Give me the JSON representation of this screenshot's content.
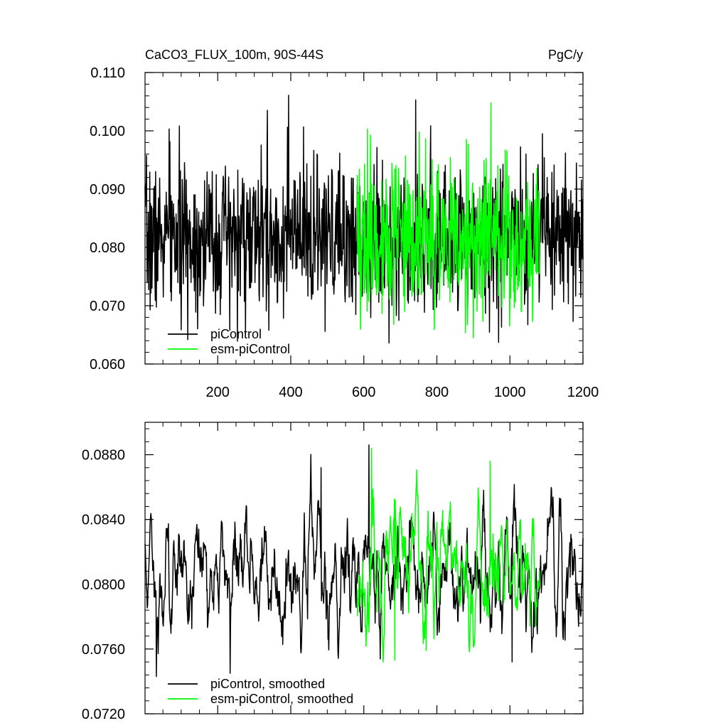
{
  "chart_data": [
    {
      "type": "line",
      "title": "CaCO3_FLUX_100m, 90S-44S",
      "units": "PgC/y",
      "xlabel": "",
      "ylabel": "",
      "xlim": [
        1,
        1200
      ],
      "ylim": [
        0.06,
        0.11
      ],
      "x_ticks": [
        200,
        400,
        600,
        800,
        1000,
        1200
      ],
      "x_tick_labels": [
        "200",
        "400",
        "600",
        "800",
        "1000",
        "1200"
      ],
      "y_ticks": [
        0.06,
        0.07,
        0.08,
        0.09,
        0.1,
        0.11
      ],
      "y_tick_labels": [
        "0.060",
        "0.070",
        "0.080",
        "0.090",
        "0.100",
        "0.110"
      ],
      "grid": false,
      "legend_position": "bottom-left",
      "series": [
        {
          "name": "piControl",
          "color": "#000000",
          "x_range": [
            1,
            1200
          ],
          "mean": 0.0815,
          "std": 0.0062,
          "smoothing": 0,
          "clip": [
            0.0636,
            0.1062
          ],
          "seed": 7,
          "peaks": [
            [
              67,
              0.1003
            ],
            [
              233,
              0.0658
            ],
            [
              336,
              0.1035
            ],
            [
              340,
              0.0658
            ],
            [
              394,
              0.1061
            ],
            [
              494,
              0.0656
            ],
            [
              742,
              0.1053
            ],
            [
              969,
              0.0637
            ],
            [
              1089,
              0.0995
            ]
          ]
        },
        {
          "name": "esm-piControl",
          "color": "#00ff00",
          "x_range": [
            582,
            1081
          ],
          "mean": 0.0815,
          "std": 0.0065,
          "smoothing": 0,
          "clip": [
            0.0645,
            0.1048
          ],
          "seed": 19,
          "peaks": [
            [
              610,
              0.1003
            ],
            [
              682,
              0.0668
            ],
            [
              752,
              0.0998
            ],
            [
              793,
              0.0659
            ],
            [
              900,
              0.0645
            ],
            [
              948,
              0.1048
            ]
          ]
        }
      ]
    },
    {
      "type": "line",
      "title": "",
      "xlabel": "",
      "ylabel": "",
      "xlim": [
        1,
        1200
      ],
      "ylim": [
        0.072,
        0.09
      ],
      "x_ticks": [
        200,
        400,
        600,
        800,
        1000,
        1200
      ],
      "y_ticks": [
        0.072,
        0.076,
        0.08,
        0.084,
        0.088
      ],
      "y_tick_labels": [
        "0.0720",
        "0.0760",
        "0.0800",
        "0.0840",
        "0.0880"
      ],
      "grid": false,
      "legend_position": "bottom-left",
      "series": [
        {
          "name": "piControl, smoothed",
          "color": "#000000",
          "x_range": [
            1,
            1200
          ],
          "mean": 0.0806,
          "std": 0.0019,
          "smoothing": 4,
          "clip": [
            0.0742,
            0.0886
          ],
          "seed": 11,
          "peaks": [
            [
              32,
              0.0743
            ],
            [
              234,
              0.0745
            ],
            [
              483,
              0.0872
            ],
            [
              614,
              0.0886
            ],
            [
              1006,
              0.0752
            ],
            [
              1188,
              0.0774
            ]
          ]
        },
        {
          "name": "esm-piControl, smoothed",
          "color": "#00ff00",
          "x_range": [
            582,
            1081
          ],
          "mean": 0.081,
          "std": 0.0021,
          "smoothing": 4,
          "clip": [
            0.0752,
            0.0884
          ],
          "seed": 23,
          "peaks": [
            [
              621,
              0.0884
            ],
            [
              685,
              0.0753
            ],
            [
              771,
              0.0759
            ],
            [
              946,
              0.0876
            ]
          ]
        }
      ]
    }
  ]
}
